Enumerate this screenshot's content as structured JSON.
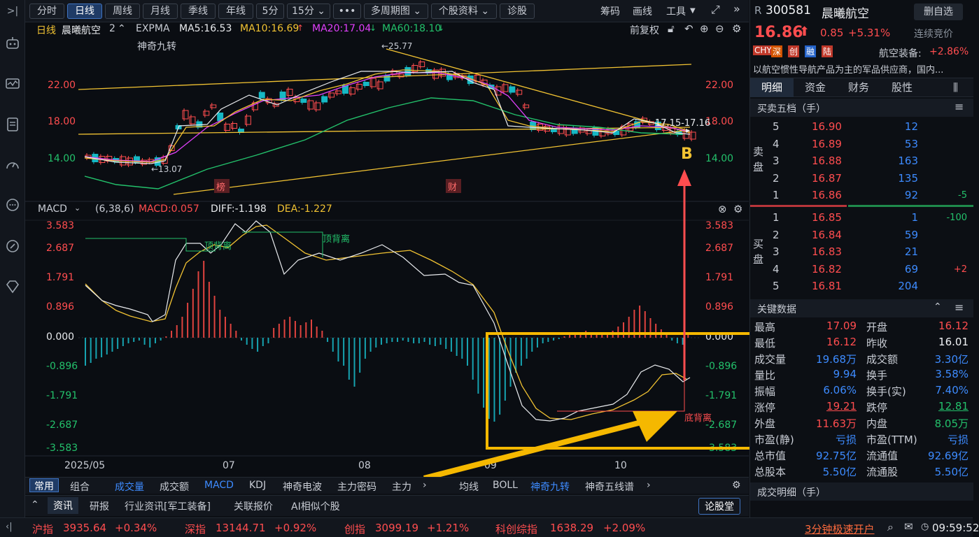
{
  "toolbar": {
    "left_items": [
      "分时",
      "日线",
      "周线",
      "月线",
      "季线",
      "年线",
      "5分",
      "15分 ⌄",
      "•••",
      "多周期图 ⌄",
      "个股资料 ⌄",
      "诊股"
    ],
    "right_items": [
      "筹码",
      "画线",
      "工具"
    ]
  },
  "chart_header": {
    "period": "日线",
    "name": "晨曦航空",
    "num": "2",
    "indicator": "EXPMA",
    "ma5": "MA5:16.53",
    "ma10": "MA10:16.69",
    "ma20": "MA20:17.04",
    "ma60": "MA60:18.10",
    "fuquan": "前复权",
    "magic": "神奇九转"
  },
  "price_axis": [
    "22.00",
    "18.00",
    "14.00"
  ],
  "price_labels": {
    "high": "←25.77",
    "low": "←13.07",
    "range": "17.15-17.16",
    "b": "B",
    "bang": "榜",
    "cai": "财"
  },
  "macd_header": {
    "name": "MACD",
    "params": "(6,38,6)",
    "macd": "MACD:0.057",
    "diff": "DIFF:-1.198",
    "dea": "DEA:-1.227"
  },
  "macd_axis": [
    "3.583",
    "2.687",
    "1.791",
    "0.896",
    "0.000",
    "-0.896",
    "-1.791",
    "-2.687",
    "-3.583"
  ],
  "macd_labels": {
    "top1": "顶背离",
    "top2": "顶背离",
    "bottom": "底背离"
  },
  "x_axis": [
    "2025/05",
    "07",
    "08",
    "09",
    "10"
  ],
  "indicator_tabs": [
    "常用",
    "组合",
    "成交量",
    "成交额",
    "MACD",
    "KDJ",
    "神奇电波",
    "主力密码",
    "主力"
  ],
  "overlay_tabs": [
    "均线",
    "BOLL",
    "神奇九转",
    "神奇五线谱"
  ],
  "news_tabs": [
    "资讯",
    "研报",
    "行业资讯[军工装备]",
    "关联报价",
    "AI相似个股"
  ],
  "news_right": "论股堂",
  "ticker": [
    {
      "name": "沪指",
      "value": "3935.64",
      "pct": "+0.34%"
    },
    {
      "name": "深指",
      "value": "13144.71",
      "pct": "+0.92%"
    },
    {
      "name": "创指",
      "value": "3099.19",
      "pct": "+1.21%"
    },
    {
      "name": "科创综指",
      "value": "1638.29",
      "pct": "+2.09%"
    }
  ],
  "ticker_right": {
    "promo": "3分钟极速开户",
    "time": "09:59:52"
  },
  "stock": {
    "flag": "R",
    "code": "300581",
    "name": "晨曦航空",
    "delete_btn": "删自选",
    "price": "16.86",
    "change": "0.85",
    "pct": "+5.31%",
    "status": "连续竞价",
    "tags": [
      "CHY",
      "深",
      "创",
      "融",
      "陆"
    ],
    "sector": "航空装备:",
    "sector_pct": "+2.86%",
    "desc": "以航空惯性导航产品为主的军品供应商，国内..."
  },
  "panel_tabs": [
    "明细",
    "资金",
    "财务",
    "股性"
  ],
  "orderbook": {
    "title": "买卖五档（手）",
    "sell_label": "卖盘",
    "buy_label": "买盘",
    "sells": [
      {
        "lvl": "5",
        "price": "16.90",
        "vol": "12",
        "chg": ""
      },
      {
        "lvl": "4",
        "price": "16.89",
        "vol": "53",
        "chg": ""
      },
      {
        "lvl": "3",
        "price": "16.88",
        "vol": "163",
        "chg": ""
      },
      {
        "lvl": "2",
        "price": "16.87",
        "vol": "135",
        "chg": ""
      },
      {
        "lvl": "1",
        "price": "16.86",
        "vol": "92",
        "chg": "-5"
      }
    ],
    "buys": [
      {
        "lvl": "1",
        "price": "16.85",
        "vol": "1",
        "chg": "-100"
      },
      {
        "lvl": "2",
        "price": "16.84",
        "vol": "59",
        "chg": ""
      },
      {
        "lvl": "3",
        "price": "16.83",
        "vol": "21",
        "chg": ""
      },
      {
        "lvl": "4",
        "price": "16.82",
        "vol": "69",
        "chg": "+2"
      },
      {
        "lvl": "5",
        "price": "16.81",
        "vol": "204",
        "chg": ""
      }
    ]
  },
  "key_data": {
    "title": "关键数据",
    "rows": [
      [
        "最高",
        "17.09",
        "开盘",
        "16.12"
      ],
      [
        "最低",
        "16.12",
        "昨收",
        "16.01"
      ],
      [
        "成交量",
        "19.68万",
        "成交额",
        "3.30亿"
      ],
      [
        "量比",
        "9.94",
        "换手",
        "3.58%"
      ],
      [
        "振幅",
        "6.06%",
        "换手(实)",
        "7.40%"
      ],
      [
        "涨停",
        "19.21",
        "跌停",
        "12.81"
      ],
      [
        "外盘",
        "11.63万",
        "内盘",
        "8.05万"
      ],
      [
        "市盈(静)",
        "亏损",
        "市盈(TTM)",
        "亏损"
      ],
      [
        "总市值",
        "92.75亿",
        "流通值",
        "92.69亿"
      ],
      [
        "总股本",
        "5.50亿",
        "流通股",
        "5.50亿"
      ]
    ]
  },
  "trade_detail_title": "成交明细（手）"
}
